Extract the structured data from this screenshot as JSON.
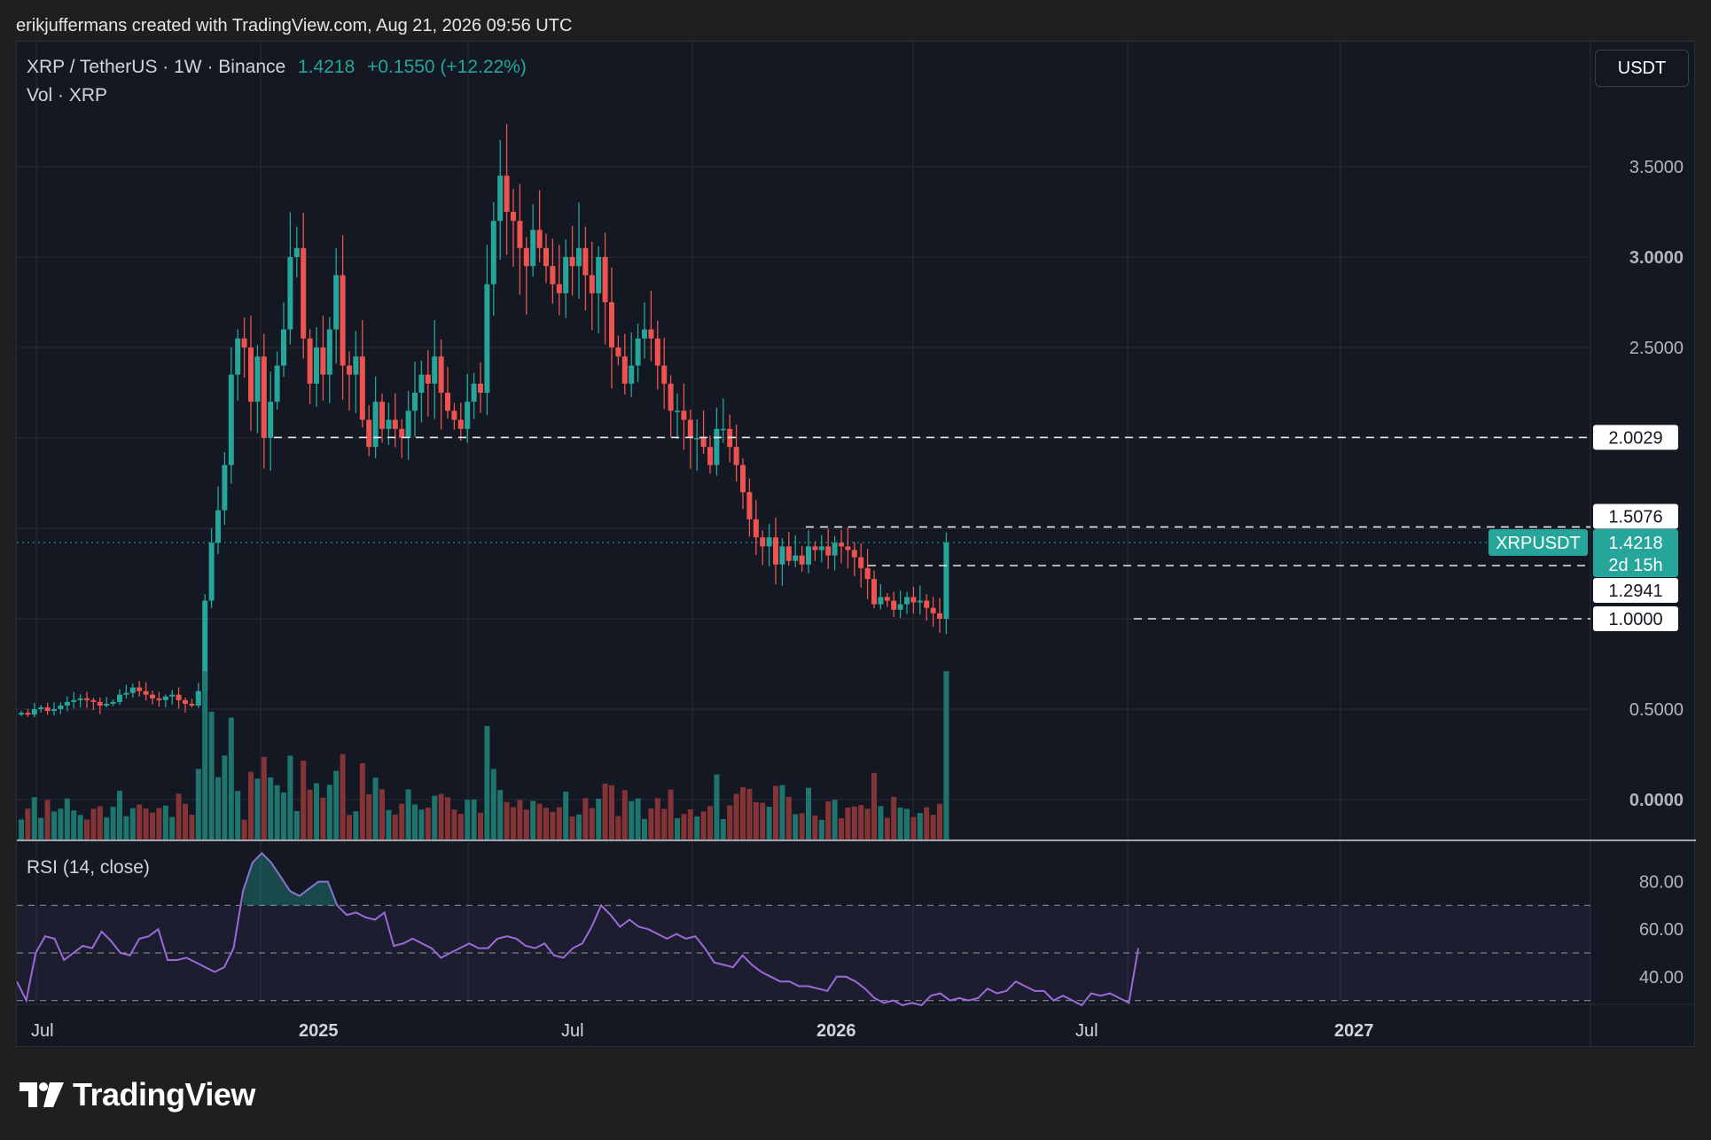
{
  "attribution": "erikjuffermans created with TradingView.com, Aug 21, 2026 09:56 UTC",
  "legend": {
    "symbol": "XRP / TetherUS · 1W · Binance",
    "price": "1.4218",
    "change": "+0.1550 (+12.22%)",
    "volume_label": "Vol · XRP"
  },
  "rsi_label": "RSI (14, close)",
  "currency_button": "USDT",
  "logo_text": "TradingView",
  "colors": {
    "background": "#141823",
    "up": "#26a69a",
    "down": "#ef5350",
    "rsi_line": "#9c6ad8",
    "grid": "#262b36",
    "level_line": "#e6e6e6"
  },
  "chart_data": [
    {
      "type": "candlestick",
      "title": "XRP / TetherUS · 1W · Binance",
      "x_tick_labels": [
        "Jul",
        "2025",
        "Jul",
        "2026",
        "Jul",
        "2027"
      ],
      "y_tick_labels": [
        "3.5000",
        "3.0000",
        "2.5000",
        "0.5000",
        "0.0000"
      ],
      "ylim": [
        -0.2,
        4.0
      ],
      "grid": true,
      "price_series": [
        {
          "name": "closes-a",
          "values": [
            0.48,
            0.47,
            0.5,
            0.51,
            0.49,
            0.5,
            0.52,
            0.54,
            0.55,
            0.56,
            0.55,
            0.54,
            0.52,
            0.53,
            0.54,
            0.58,
            0.59,
            0.62,
            0.6,
            0.58,
            0.56,
            0.55,
            0.57,
            0.58,
            0.55,
            0.53,
            0.52,
            0.6,
            1.1,
            1.42,
            1.6,
            1.85,
            2.35,
            2.55,
            2.5,
            2.2,
            2.45,
            2.0,
            2.2,
            2.4,
            2.6,
            3.0,
            3.05,
            2.55,
            2.3,
            2.5,
            2.35,
            2.6,
            2.9,
            2.4,
            2.35,
            2.45,
            2.1,
            1.95,
            2.2,
            2.05,
            2.1,
            2.05,
            2.0,
            2.15,
            2.25,
            2.35,
            2.3,
            2.45,
            2.25,
            2.15,
            2.1,
            2.05,
            2.2,
            2.3
          ]
        },
        {
          "name": "closes-b",
          "values": [
            2.25,
            2.85,
            3.2,
            3.45,
            3.25,
            3.2,
            3.05,
            2.95,
            3.15,
            3.05,
            2.95,
            2.85,
            2.8,
            3.0,
            2.95,
            3.05,
            2.9,
            2.8,
            3.0,
            2.75,
            2.5,
            2.45,
            2.3,
            2.4,
            2.55,
            2.6,
            2.55,
            2.4,
            2.3,
            2.15,
            2.15,
            2.1,
            2.0,
            2.0,
            1.95,
            1.85,
            2.05,
            2.05,
            1.95,
            1.85,
            1.7,
            1.55,
            1.45,
            1.4,
            1.45,
            1.3,
            1.4,
            1.32,
            1.35,
            1.3,
            1.4,
            1.38,
            1.4,
            1.35,
            1.42,
            1.4,
            1.38,
            1.34,
            1.28,
            1.22,
            1.08,
            1.12,
            1.1,
            1.05,
            1.08,
            1.12,
            1.09,
            1.1,
            1.06,
            1.03,
            1.0,
            1.4218
          ]
        }
      ],
      "horizontal_levels": [
        "2.0029",
        "1.5076",
        "1.2941",
        "1.0000"
      ],
      "last_price_label": {
        "symbol": "XRPUSDT",
        "price": "1.4218",
        "countdown": "2d 15h"
      }
    },
    {
      "type": "line",
      "title": "RSI (14, close)",
      "y_tick_labels": [
        "80.00",
        "60.00",
        "40.00"
      ],
      "ylim": [
        20,
        100
      ],
      "bands": [
        70,
        50,
        30
      ],
      "series": [
        {
          "values": [
            38,
            30,
            50,
            57,
            56,
            47,
            50,
            53,
            52,
            59,
            55,
            50,
            49,
            56,
            57,
            60,
            47,
            47,
            48,
            46,
            44,
            42,
            44,
            52,
            76,
            88,
            92,
            88,
            82,
            76,
            74,
            77,
            80,
            80,
            70,
            66,
            67,
            65,
            64,
            67,
            53,
            54,
            56,
            54,
            52,
            48,
            50,
            52,
            54,
            52,
            52,
            56,
            57,
            56,
            53,
            52,
            54,
            49,
            48,
            52,
            54,
            61,
            70,
            66,
            61,
            64,
            61,
            60,
            58,
            56,
            58,
            56,
            57,
            52,
            46,
            45,
            44,
            49,
            45,
            42,
            40,
            38,
            38,
            36,
            36,
            35,
            34,
            40,
            40,
            38,
            35,
            31,
            29,
            30,
            28,
            29,
            28,
            32,
            33,
            30,
            31,
            30,
            31,
            35,
            33,
            34,
            38,
            36,
            34,
            34,
            30,
            32,
            30,
            28,
            33,
            32,
            33,
            31,
            29,
            52
          ]
        }
      ]
    }
  ]
}
